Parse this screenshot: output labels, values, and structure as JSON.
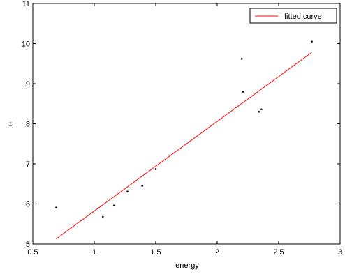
{
  "chart_data": {
    "type": "scatter",
    "xlabel": "energy",
    "ylabel": "θ",
    "xlim": [
      0.5,
      3
    ],
    "ylim": [
      5,
      11
    ],
    "xticks": [
      "0.5",
      "1",
      "1.5",
      "2",
      "2.5",
      "3"
    ],
    "yticks": [
      "5",
      "6",
      "7",
      "8",
      "9",
      "10",
      "11"
    ],
    "grid": false,
    "legend_position": "top-right",
    "points": {
      "color": "#000000",
      "x": [
        0.69,
        1.07,
        1.16,
        1.27,
        1.39,
        1.5,
        2.2,
        2.21,
        2.34,
        2.36,
        2.77
      ],
      "y": [
        5.91,
        5.68,
        5.96,
        6.31,
        6.45,
        6.87,
        9.62,
        8.8,
        8.3,
        8.36,
        10.05
      ]
    },
    "series": [
      {
        "name": "fitted curve",
        "type": "line",
        "color": "#ff0000",
        "x": [
          0.69,
          2.77
        ],
        "y": [
          5.13,
          9.78
        ]
      }
    ]
  }
}
